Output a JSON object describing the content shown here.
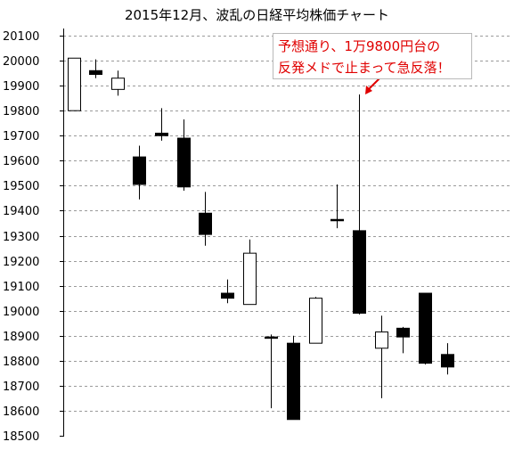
{
  "chart_data": {
    "type": "candlestick",
    "title": "2015年12月、波乱の日経平均株価チャート",
    "ylim": [
      18500,
      20100
    ],
    "yticks": [
      20100,
      20000,
      19900,
      19800,
      19700,
      19600,
      19500,
      19400,
      19300,
      19200,
      19100,
      19000,
      18900,
      18800,
      18700,
      18600,
      18500
    ],
    "grid": "horizontal-dashed",
    "annotation": {
      "lines": [
        "予想通り、1万9800円台の",
        "反発メドで止まって急反落！"
      ],
      "points_to_index": 13
    },
    "candles": [
      {
        "open": 19800,
        "close": 20010,
        "high": 20010,
        "low": 19800
      },
      {
        "open": 19960,
        "close": 19945,
        "high": 20005,
        "low": 19930
      },
      {
        "open": 19885,
        "close": 19930,
        "high": 19960,
        "low": 19860
      },
      {
        "open": 19615,
        "close": 19505,
        "high": 19660,
        "low": 19445
      },
      {
        "open": 19710,
        "close": 19700,
        "high": 19810,
        "low": 19680
      },
      {
        "open": 19690,
        "close": 19495,
        "high": 19765,
        "low": 19480
      },
      {
        "open": 19390,
        "close": 19305,
        "high": 19475,
        "low": 19260
      },
      {
        "open": 19070,
        "close": 19050,
        "high": 19125,
        "low": 19030
      },
      {
        "open": 19025,
        "close": 19230,
        "high": 19285,
        "low": 19025
      },
      {
        "open": 18895,
        "close": 18890,
        "high": 18905,
        "low": 18610
      },
      {
        "open": 18870,
        "close": 18565,
        "high": 18900,
        "low": 18565
      },
      {
        "open": 18870,
        "close": 19050,
        "high": 19055,
        "low": 18870
      },
      {
        "open": 19365,
        "close": 19360,
        "high": 19505,
        "low": 19330
      },
      {
        "open": 19320,
        "close": 18990,
        "high": 19865,
        "low": 18985
      },
      {
        "open": 18850,
        "close": 18915,
        "high": 18980,
        "low": 18650
      },
      {
        "open": 18930,
        "close": 18895,
        "high": 18935,
        "low": 18830
      },
      {
        "open": 19070,
        "close": 18790,
        "high": 19070,
        "low": 18785
      },
      {
        "open": 18825,
        "close": 18775,
        "high": 18870,
        "low": 18745
      }
    ]
  }
}
